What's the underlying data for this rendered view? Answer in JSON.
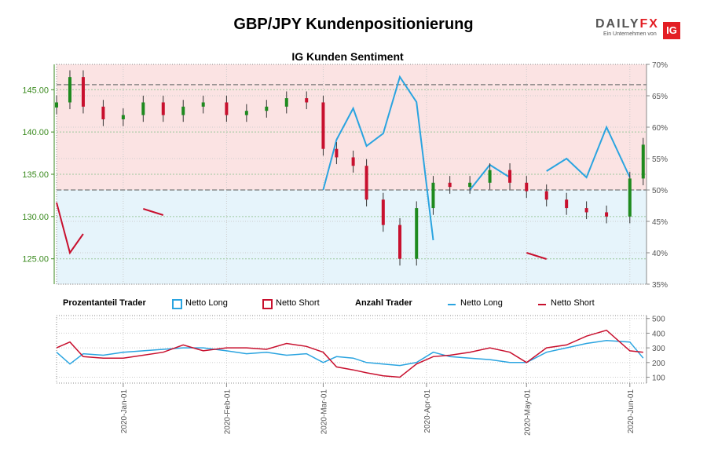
{
  "header": {
    "title": "GBP/JPY Kundenpositionierung",
    "subtitle": "IG Kunden Sentiment",
    "logo_word_a": "DAILY",
    "logo_word_b": "FX",
    "logo_sub": "Ein Unternehmen von",
    "logo_mark": "IG"
  },
  "legend": {
    "percent_title": "Prozentanteil Trader",
    "percent_long": "Netto Long",
    "percent_short": "Netto Short",
    "count_title": "Anzahl Trader",
    "count_long": "Netto Long",
    "count_short": "Netto Short"
  },
  "colors": {
    "long": "#2aa4e0",
    "short": "#c8102e",
    "candle_up": "#1e8a1e",
    "candle_down": "#c8102e",
    "price_axis": "#3a8a1e",
    "short_zone": "#fbe3e3",
    "long_zone": "#e6f4fb"
  },
  "chart_data": [
    {
      "type": "candlestick",
      "title": "IG Kunden Sentiment",
      "y_left_label": "",
      "y_left_ticks": [
        "125.00",
        "130.00",
        "135.00",
        "140.00",
        "145.00"
      ],
      "y_left_range": [
        122.0,
        148.0
      ],
      "y_right_ticks": [
        "35%",
        "40%",
        "45%",
        "50%",
        "55%",
        "60%",
        "65%",
        "70%"
      ],
      "y_right_range": [
        35,
        70
      ],
      "reference_lines": [
        {
          "axis": "left",
          "value": 145.6
        },
        {
          "axis": "right",
          "value": 50
        }
      ],
      "grid": true,
      "price": {
        "dates": [
          "2019-12-12",
          "2019-12-16",
          "2019-12-20",
          "2019-12-26",
          "2020-01-01",
          "2020-01-07",
          "2020-01-13",
          "2020-01-19",
          "2020-01-25",
          "2020-02-01",
          "2020-02-07",
          "2020-02-13",
          "2020-02-19",
          "2020-02-25",
          "2020-03-01",
          "2020-03-05",
          "2020-03-10",
          "2020-03-14",
          "2020-03-19",
          "2020-03-24",
          "2020-03-29",
          "2020-04-03",
          "2020-04-08",
          "2020-04-14",
          "2020-04-20",
          "2020-04-26",
          "2020-05-01",
          "2020-05-07",
          "2020-05-13",
          "2020-05-19",
          "2020-05-25",
          "2020-06-01",
          "2020-06-05"
        ],
        "close": [
          143.5,
          146.5,
          143.0,
          141.5,
          142.0,
          143.5,
          142.0,
          143.0,
          143.5,
          142.0,
          142.5,
          143.0,
          144.0,
          143.5,
          138.0,
          137.0,
          136.0,
          132.0,
          129.0,
          125.0,
          131.0,
          134.0,
          133.5,
          134.0,
          135.5,
          134.0,
          133.0,
          132.0,
          131.0,
          130.5,
          130.0,
          134.5,
          138.5
        ]
      },
      "series": [
        {
          "name": "Netto Long",
          "dates": [
            "2019-12-12",
            "2019-12-16",
            "2019-12-20",
            "2019-12-26",
            "2020-01-01",
            "2020-01-07",
            "2020-01-13",
            "2020-01-19",
            "2020-01-25",
            "2020-02-01",
            "2020-02-07",
            "2020-02-13",
            "2020-02-19",
            "2020-02-25",
            "2020-03-01",
            "2020-03-05",
            "2020-03-10",
            "2020-03-14",
            "2020-03-19",
            "2020-03-24",
            "2020-03-29",
            "2020-04-03",
            "2020-04-08",
            "2020-04-14",
            "2020-04-20",
            "2020-04-26",
            "2020-05-01",
            "2020-05-07",
            "2020-05-13",
            "2020-05-19",
            "2020-05-25",
            "2020-06-01",
            "2020-06-05"
          ],
          "values": [
            null,
            null,
            null,
            null,
            null,
            null,
            null,
            null,
            null,
            null,
            null,
            null,
            null,
            null,
            50,
            58,
            63,
            57,
            59,
            68,
            64,
            42,
            null,
            50,
            54,
            52,
            null,
            53,
            55,
            52,
            60,
            52,
            null
          ]
        },
        {
          "name": "Netto Short",
          "dates": [
            "2019-12-12",
            "2019-12-16",
            "2019-12-20",
            "2019-12-26",
            "2020-01-01",
            "2020-01-07",
            "2020-01-13",
            "2020-01-19",
            "2020-01-25",
            "2020-02-01",
            "2020-02-07",
            "2020-02-13",
            "2020-02-19",
            "2020-02-25",
            "2020-03-01",
            "2020-03-05",
            "2020-03-10",
            "2020-03-14",
            "2020-03-19",
            "2020-03-24",
            "2020-03-29",
            "2020-04-03",
            "2020-04-08",
            "2020-04-14",
            "2020-04-20",
            "2020-04-26",
            "2020-05-01",
            "2020-05-07",
            "2020-05-13",
            "2020-05-19",
            "2020-05-25",
            "2020-06-01",
            "2020-06-05"
          ],
          "values": [
            48,
            40,
            43,
            null,
            null,
            47,
            46,
            null,
            null,
            null,
            null,
            45,
            null,
            44,
            null,
            null,
            null,
            null,
            null,
            null,
            null,
            null,
            47,
            null,
            null,
            null,
            40,
            39,
            null,
            null,
            null,
            null,
            45
          ]
        }
      ]
    },
    {
      "type": "line",
      "title": "Anzahl Trader",
      "y_right_ticks": [
        "100",
        "200",
        "300",
        "400",
        "500"
      ],
      "y_range": [
        60,
        520
      ],
      "x_ticks": [
        "2020-Jan-01",
        "2020-Feb-01",
        "2020-Mar-01",
        "2020-Apr-01",
        "2020-May-01",
        "2020-Jun-01"
      ],
      "grid": true,
      "series": [
        {
          "name": "Netto Long",
          "dates": [
            "2019-12-12",
            "2019-12-16",
            "2019-12-20",
            "2019-12-26",
            "2020-01-01",
            "2020-01-07",
            "2020-01-13",
            "2020-01-19",
            "2020-01-25",
            "2020-02-01",
            "2020-02-07",
            "2020-02-13",
            "2020-02-19",
            "2020-02-25",
            "2020-03-01",
            "2020-03-05",
            "2020-03-10",
            "2020-03-14",
            "2020-03-19",
            "2020-03-24",
            "2020-03-29",
            "2020-04-03",
            "2020-04-08",
            "2020-04-14",
            "2020-04-20",
            "2020-04-26",
            "2020-05-01",
            "2020-05-07",
            "2020-05-13",
            "2020-05-19",
            "2020-05-25",
            "2020-06-01",
            "2020-06-05"
          ],
          "values": [
            270,
            190,
            260,
            250,
            270,
            280,
            290,
            300,
            300,
            280,
            260,
            270,
            250,
            260,
            200,
            240,
            230,
            200,
            190,
            180,
            200,
            270,
            240,
            230,
            220,
            200,
            200,
            270,
            300,
            330,
            350,
            340,
            230
          ]
        },
        {
          "name": "Netto Short",
          "dates": [
            "2019-12-12",
            "2019-12-16",
            "2019-12-20",
            "2019-12-26",
            "2020-01-01",
            "2020-01-07",
            "2020-01-13",
            "2020-01-19",
            "2020-01-25",
            "2020-02-01",
            "2020-02-07",
            "2020-02-13",
            "2020-02-19",
            "2020-02-25",
            "2020-03-01",
            "2020-03-05",
            "2020-03-10",
            "2020-03-14",
            "2020-03-19",
            "2020-03-24",
            "2020-03-29",
            "2020-04-03",
            "2020-04-08",
            "2020-04-14",
            "2020-04-20",
            "2020-04-26",
            "2020-05-01",
            "2020-05-07",
            "2020-05-13",
            "2020-05-19",
            "2020-05-25",
            "2020-06-01",
            "2020-06-05"
          ],
          "values": [
            300,
            340,
            240,
            230,
            230,
            250,
            270,
            320,
            280,
            300,
            300,
            290,
            330,
            310,
            270,
            170,
            150,
            130,
            110,
            100,
            190,
            240,
            250,
            270,
            300,
            270,
            200,
            300,
            320,
            380,
            420,
            280,
            270
          ]
        }
      ]
    }
  ]
}
